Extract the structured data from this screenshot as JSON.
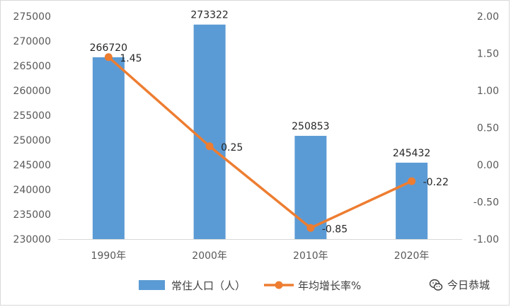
{
  "chart_data": {
    "type": "bar+line",
    "title": "",
    "categories": [
      "1990年",
      "2000年",
      "2010年",
      "2020年"
    ],
    "series": [
      {
        "name": "常住人口（人）",
        "type": "bar",
        "axis": "left",
        "color": "#5b9bd5",
        "values": [
          266720,
          273322,
          250853,
          245432
        ],
        "labels": [
          "266720",
          "273322",
          "250853",
          "245432"
        ]
      },
      {
        "name": "年均增长率%",
        "type": "line",
        "axis": "right",
        "color": "#ed7d31",
        "values": [
          1.45,
          0.25,
          -0.85,
          -0.22
        ],
        "labels": [
          "1.45",
          "0.25",
          "-0.85",
          "-0.22"
        ]
      }
    ],
    "left_axis": {
      "min": 230000,
      "max": 275000,
      "step": 5000,
      "ticks": [
        "230000",
        "235000",
        "240000",
        "245000",
        "250000",
        "255000",
        "260000",
        "265000",
        "270000",
        "275000"
      ]
    },
    "right_axis": {
      "min": -1.0,
      "max": 2.0,
      "step": 0.5,
      "ticks": [
        "-1.00",
        "-0.50",
        "0.00",
        "0.50",
        "1.00",
        "1.50",
        "2.00"
      ]
    },
    "legend_position": "bottom",
    "grid": false
  },
  "watermark": {
    "text": "今日恭城",
    "icon": "wechat-icon",
    "color": "#3a3a3a"
  }
}
